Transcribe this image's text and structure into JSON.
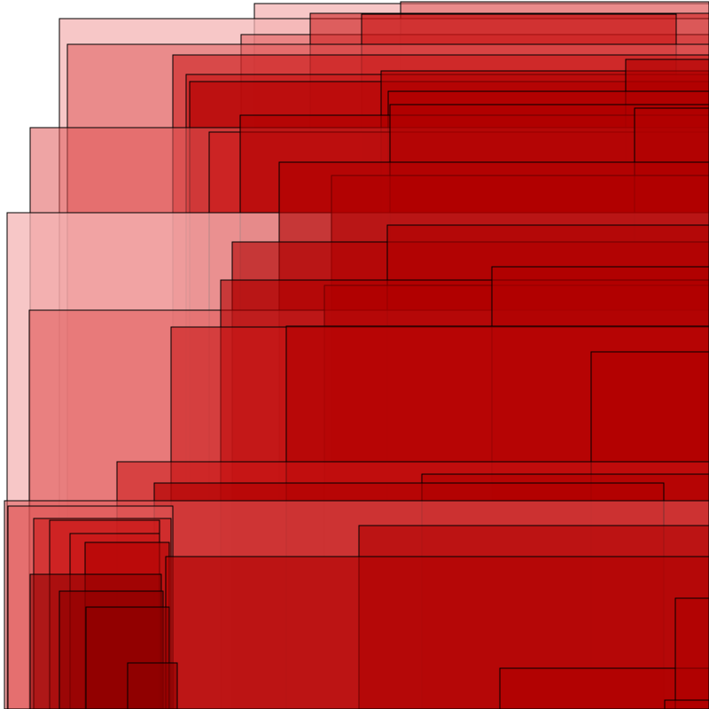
{
  "palette": {
    "background": "#ffffff",
    "outline": "#000000",
    "light_pink": "#f4b4b4",
    "salmon": "#e05a5a",
    "crimson": "#c81414",
    "deep_red": "#b00000",
    "dark_red": "#8e0000"
  }
}
